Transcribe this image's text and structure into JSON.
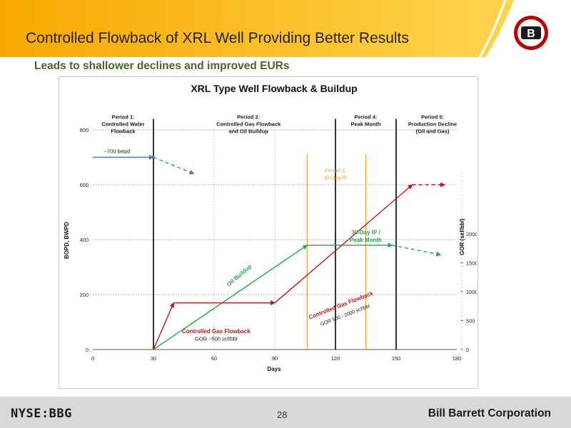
{
  "slide": {
    "title": "Controlled Flowback of XRL Well Providing Better Results",
    "subtitle": "Leads to shallower declines and improved EURs",
    "colors": {
      "banner_orange": "#f7a800",
      "banner_yellow": "#ffd54f",
      "subtitle_green": "#4f6228",
      "footer_gray": "#d9d9d9"
    }
  },
  "logo": {
    "letter": "B",
    "colors": {
      "ring": "#c00000",
      "center": "#1a1a1a"
    }
  },
  "footer": {
    "ticker": "NYSE:BBG",
    "page_number": "28",
    "company": "Bill Barrett Corporation"
  },
  "chart_data": {
    "type": "line",
    "title": "XRL Type Well Flowback & Buildup",
    "xlabel": "Days",
    "ylabel": "BOPD, BWPD",
    "y2label": "GOR (scf/bbl)",
    "xlim": [
      0,
      180
    ],
    "ylim": [
      0,
      800
    ],
    "y2lim": [
      0,
      3800
    ],
    "x_ticks": [
      "0",
      "30",
      "60",
      "90",
      "120",
      "150",
      "180"
    ],
    "y_ticks": [
      "0",
      "200",
      "400",
      "600",
      "800"
    ],
    "y2_ticks": [
      "0",
      "500",
      "1000",
      "1500",
      "2000"
    ],
    "grid": true,
    "colors": {
      "water": "#4a7ebb",
      "oil": "#1faa4a",
      "gas": "#c0151b",
      "period3": "#f39b35",
      "divider": "#000000"
    },
    "series": [
      {
        "key": "water",
        "solid": [
          [
            0,
            700
          ],
          [
            30,
            700
          ]
        ],
        "dashed": [
          [
            30,
            700
          ],
          [
            50,
            640
          ]
        ]
      },
      {
        "key": "oil",
        "solid": [
          [
            30,
            0
          ],
          [
            106,
            380
          ],
          [
            148,
            380
          ]
        ],
        "dashed": [
          [
            148,
            380
          ],
          [
            172,
            345
          ]
        ]
      },
      {
        "key": "gas",
        "axis": "y2",
        "solid": [
          [
            30,
            0
          ],
          [
            40,
            170
          ],
          [
            90,
            170
          ],
          [
            158,
            600
          ]
        ],
        "dashed": [
          [
            158,
            600
          ],
          [
            174,
            600
          ]
        ]
      }
    ],
    "period_dividers": [
      {
        "x": 30,
        "color": "divider"
      },
      {
        "x": 120,
        "color": "divider"
      },
      {
        "x": 150,
        "color": "divider"
      }
    ],
    "period3_lines": [
      106,
      135
    ],
    "period_labels": [
      {
        "lines": [
          "Period 1:",
          "Controlled Water",
          "Flowback"
        ],
        "x": 15,
        "y": 840,
        "color": "#1a1a1a",
        "bold": true
      },
      {
        "lines": [
          "Period 2:",
          "Controlled Gas Flowback",
          "and Oil Buildup"
        ],
        "x": 77,
        "y": 840,
        "color": "#1a1a1a",
        "bold": true
      },
      {
        "lines": [
          "Period 4:",
          "Peak Month"
        ],
        "x": 135,
        "y": 840,
        "color": "#1a1a1a",
        "bold": true
      },
      {
        "lines": [
          "Period 5:",
          "Production Decline",
          "(Oil and Gas)"
        ],
        "x": 168,
        "y": 840,
        "color": "#1a1a1a",
        "bold": true
      },
      {
        "lines": [
          "Period 3:",
          "30-Day IP"
        ],
        "x": 120,
        "y": 645,
        "color": "#f39b35",
        "bold": false
      }
    ],
    "annotations": [
      {
        "text": "~700 bwpd",
        "x": 12,
        "y": 715,
        "color": "#1a1a1a",
        "rotate": 0,
        "size": 7.5,
        "bold": false
      },
      {
        "text": "Oil Buildup",
        "x": 73,
        "y": 265,
        "color": "#1faa4a",
        "rotate": -40,
        "size": 8,
        "bold": true
      },
      {
        "text": "30-Day IP /",
        "x": 135,
        "y": 420,
        "color": "#1faa4a",
        "rotate": 0,
        "size": 8,
        "bold": true
      },
      {
        "text": "Peak Month",
        "x": 135,
        "y": 392,
        "color": "#1faa4a",
        "rotate": 0,
        "size": 8,
        "bold": true
      },
      {
        "text": "Controlled Gas Flowback",
        "x": 61,
        "y": 60,
        "color": "#c0151b",
        "rotate": 0,
        "size": 8,
        "bold": true
      },
      {
        "text": "GOR ~500 scf/bbl",
        "x": 61,
        "y": 32,
        "color": "#1a1a1a",
        "rotate": 0,
        "size": 7.5,
        "bold": false
      },
      {
        "text": "Controlled Gas Flowback",
        "x": 123,
        "y": 155,
        "color": "#c0151b",
        "rotate": -21,
        "size": 8,
        "bold": true
      },
      {
        "text": "GOR 500 - 2000 scf/bbl",
        "x": 125,
        "y": 120,
        "color": "#1a1a1a",
        "rotate": -21,
        "size": 7,
        "bold": false
      }
    ]
  }
}
